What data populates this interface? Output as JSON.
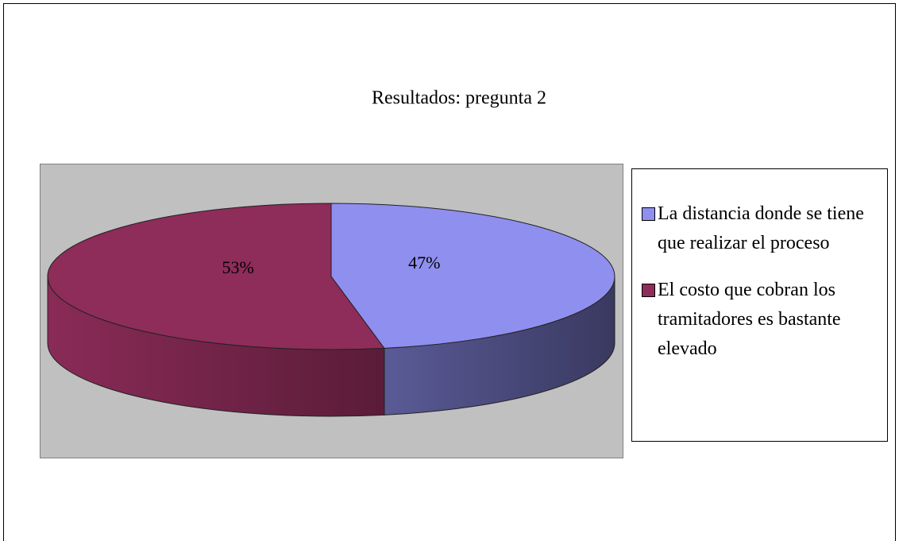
{
  "chart_data": {
    "type": "pie",
    "title": "Resultados: pregunta 2",
    "categories": [
      "La distancia donde se tiene que realizar el proceso",
      "El costo que cobran los tramitadores es bastante elevado"
    ],
    "values": [
      47,
      53
    ],
    "value_labels": [
      "47%",
      "53%"
    ],
    "colors": [
      "#8f8fef",
      "#8e2c5a"
    ]
  }
}
